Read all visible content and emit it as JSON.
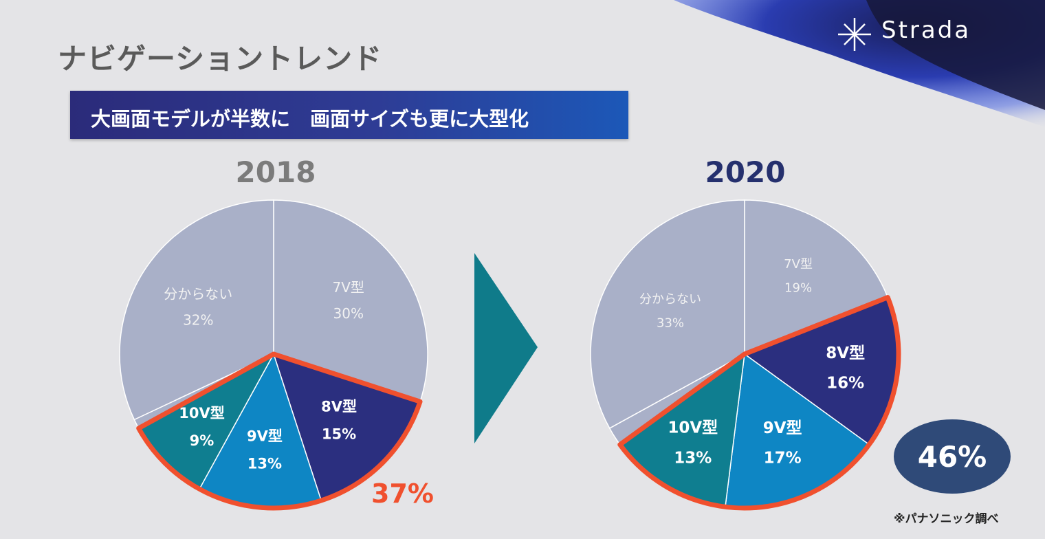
{
  "slide": {
    "title": "ナビゲーショントレンド",
    "banner": "大画面モデルが半数に　画面サイズも更に大型化",
    "brand": "Strada",
    "source_note": "※パナソニック調べ"
  },
  "colors": {
    "unknown": "#a9b0c8",
    "7v": "#a9b0c8",
    "8v": "#2b2f7f",
    "9v": "#0e86c4",
    "10v": "#0f7e90",
    "highlight": "#f0502e",
    "arrow": "#0f7b8a",
    "badge": "#2f4a78"
  },
  "chart_data": [
    {
      "type": "pie",
      "title": "2018",
      "slices": [
        {
          "label": "7V型",
          "value": 30,
          "pct_label": "30%",
          "color_key": "7v",
          "highlight": false
        },
        {
          "label": "8V型",
          "value": 15,
          "pct_label": "15%",
          "color_key": "8v",
          "highlight": true
        },
        {
          "label": "9V型",
          "value": 13,
          "pct_label": "13%",
          "color_key": "9v",
          "highlight": true
        },
        {
          "label": "10V型",
          "value": 9,
          "pct_label": "9%",
          "color_key": "10v",
          "highlight": true
        },
        {
          "label": "",
          "value": 1,
          "pct_label": "",
          "color_key": "unknown",
          "highlight": false
        },
        {
          "label": "分からない",
          "value": 32,
          "pct_label": "32%",
          "color_key": "unknown",
          "highlight": false
        }
      ],
      "highlight_total_label": "37%"
    },
    {
      "type": "pie",
      "title": "2020",
      "slices": [
        {
          "label": "7V型",
          "value": 19,
          "pct_label": "19%",
          "color_key": "7v",
          "highlight": false
        },
        {
          "label": "8V型",
          "value": 16,
          "pct_label": "16%",
          "color_key": "8v",
          "highlight": true
        },
        {
          "label": "9V型",
          "value": 17,
          "pct_label": "17%",
          "color_key": "9v",
          "highlight": true
        },
        {
          "label": "10V型",
          "value": 13,
          "pct_label": "13%",
          "color_key": "10v",
          "highlight": true
        },
        {
          "label": "",
          "value": 2,
          "pct_label": "",
          "color_key": "unknown",
          "highlight": false
        },
        {
          "label": "分からない",
          "value": 33,
          "pct_label": "33%",
          "color_key": "unknown",
          "highlight": false
        }
      ],
      "highlight_total_label": "46%"
    }
  ]
}
